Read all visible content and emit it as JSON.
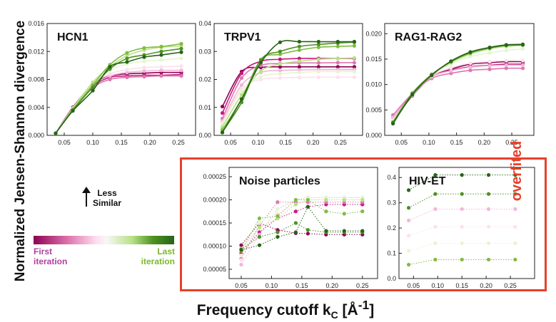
{
  "figure": {
    "ylabel": "Normalized Jensen-Shannon divergence",
    "xlabel_main": "Frequency cutoff k",
    "xlabel_sub": "C",
    "xlabel_unit": " [Å",
    "xlabel_sup": "-1",
    "xlabel_end": "]",
    "arrow_label_1": "Less",
    "arrow_label_2": "Similar",
    "legend_first_1": "First",
    "legend_first_2": "iteration",
    "legend_last_1": "Last",
    "legend_last_2": "iteration",
    "overfit_label": "overfited"
  },
  "palette": [
    "#8e0152",
    "#c51b7d",
    "#de77ae",
    "#f1b6da",
    "#fde0ef",
    "#e6f5d0",
    "#b8e186",
    "#7fbc41",
    "#4d9221",
    "#276419"
  ],
  "chart_data": [
    {
      "id": "hcn1",
      "type": "scatter",
      "title": "HCN1",
      "xlim": [
        0.02,
        0.28
      ],
      "ylim": [
        0,
        0.016
      ],
      "xticks": [
        "0.05",
        "0.10",
        "0.15",
        "0.20",
        "0.25"
      ],
      "yticks": [
        "0.000",
        "0.004",
        "0.008",
        "0.012",
        "0.016"
      ],
      "x": [
        0.035,
        0.065,
        0.1,
        0.13,
        0.16,
        0.19,
        0.22,
        0.255
      ],
      "series": [
        {
          "values": [
            0.0003,
            0.004,
            0.0073,
            0.0085,
            0.0088,
            0.0089,
            0.009,
            0.009
          ]
        },
        {
          "values": [
            0.0003,
            0.0038,
            0.007,
            0.0083,
            0.0085,
            0.0086,
            0.0086,
            0.0087
          ]
        },
        {
          "values": [
            0.0003,
            0.0036,
            0.0068,
            0.008,
            0.0083,
            0.0084,
            0.0085,
            0.0085
          ]
        },
        {
          "values": [
            0.0003,
            0.0037,
            0.0071,
            0.0085,
            0.009,
            0.0092,
            0.0093,
            0.0093
          ]
        },
        {
          "values": [
            0.0003,
            0.0038,
            0.0073,
            0.0088,
            0.0094,
            0.0097,
            0.0098,
            0.0099
          ]
        },
        {
          "values": [
            0.0003,
            0.0039,
            0.0075,
            0.0093,
            0.0102,
            0.0106,
            0.0108,
            0.011
          ]
        },
        {
          "values": [
            0.0003,
            0.0038,
            0.0076,
            0.0098,
            0.0114,
            0.0122,
            0.0126,
            0.0128
          ]
        },
        {
          "values": [
            0.0003,
            0.0037,
            0.0072,
            0.0101,
            0.0118,
            0.0125,
            0.0127,
            0.0131
          ]
        },
        {
          "values": [
            0.0003,
            0.0036,
            0.0069,
            0.0095,
            0.011,
            0.0115,
            0.012,
            0.0124
          ]
        },
        {
          "values": [
            0.0003,
            0.0035,
            0.0064,
            0.0098,
            0.0105,
            0.0112,
            0.0115,
            0.0119
          ]
        }
      ]
    },
    {
      "id": "trpv1",
      "type": "scatter",
      "title": "TRPV1",
      "xlim": [
        0.02,
        0.29
      ],
      "ylim": [
        0,
        0.04
      ],
      "xticks": [
        "0.05",
        "0.10",
        "0.15",
        "0.20",
        "0.25"
      ],
      "yticks": [
        "0.00",
        "0.01",
        "0.02",
        "0.03",
        "0.04"
      ],
      "x": [
        0.035,
        0.07,
        0.105,
        0.14,
        0.175,
        0.21,
        0.245,
        0.275
      ],
      "series": [
        {
          "values": [
            0.0103,
            0.0228,
            0.0243,
            0.0245,
            0.0245,
            0.0245,
            0.0245,
            0.0245
          ]
        },
        {
          "values": [
            0.008,
            0.0222,
            0.0265,
            0.0272,
            0.0275,
            0.0275,
            0.0275,
            0.0275
          ]
        },
        {
          "values": [
            0.006,
            0.0205,
            0.025,
            0.0257,
            0.0259,
            0.0259,
            0.026,
            0.026
          ]
        },
        {
          "values": [
            0.005,
            0.018,
            0.0225,
            0.0232,
            0.0234,
            0.0235,
            0.0235,
            0.0235
          ]
        },
        {
          "values": [
            0.0045,
            0.0165,
            0.02,
            0.0205,
            0.0207,
            0.0208,
            0.0208,
            0.0208
          ]
        },
        {
          "values": [
            0.004,
            0.016,
            0.021,
            0.022,
            0.0225,
            0.0228,
            0.0228,
            0.0228
          ]
        },
        {
          "values": [
            0.003,
            0.0145,
            0.023,
            0.0255,
            0.0265,
            0.0272,
            0.0275,
            0.0277
          ]
        },
        {
          "values": [
            0.002,
            0.013,
            0.027,
            0.029,
            0.0305,
            0.0315,
            0.0318,
            0.032
          ]
        },
        {
          "values": [
            0.0012,
            0.0118,
            0.027,
            0.03,
            0.0318,
            0.0325,
            0.033,
            0.0333
          ]
        },
        {
          "values": [
            0.001,
            0.013,
            0.026,
            0.0333,
            0.0335,
            0.0335,
            0.0335,
            0.0335
          ]
        }
      ]
    },
    {
      "id": "rag",
      "type": "scatter",
      "title": "RAG1-RAG2",
      "xlim": [
        0.02,
        0.29
      ],
      "ylim": [
        0,
        0.022
      ],
      "xticks": [
        "0.05",
        "0.10",
        "0.15",
        "0.20",
        "0.25"
      ],
      "yticks": [
        "0.000",
        "0.005",
        "0.010",
        "0.015",
        "0.020"
      ],
      "x": [
        0.035,
        0.07,
        0.105,
        0.14,
        0.175,
        0.21,
        0.24,
        0.27
      ],
      "series": [
        {
          "values": [
            0.0028,
            0.0078,
            0.0115,
            0.013,
            0.014,
            0.0143,
            0.0145,
            0.0145
          ]
        },
        {
          "values": [
            0.0035,
            0.008,
            0.0116,
            0.0128,
            0.0135,
            0.0138,
            0.014,
            0.014
          ]
        },
        {
          "values": [
            0.004,
            0.0082,
            0.0112,
            0.0122,
            0.0128,
            0.013,
            0.0132,
            0.0132
          ]
        },
        {
          "values": [
            0.0035,
            0.008,
            0.0115,
            0.0127,
            0.0134,
            0.0137,
            0.0138,
            0.0138
          ]
        },
        {
          "values": [
            0.003,
            0.0079,
            0.0117,
            0.0133,
            0.0142,
            0.0145,
            0.0147,
            0.0147
          ]
        },
        {
          "values": [
            0.0028,
            0.008,
            0.012,
            0.014,
            0.0155,
            0.0162,
            0.0167,
            0.017
          ]
        },
        {
          "values": [
            0.0027,
            0.0082,
            0.012,
            0.0143,
            0.016,
            0.017,
            0.0175,
            0.0177
          ]
        },
        {
          "values": [
            0.0026,
            0.0083,
            0.012,
            0.0145,
            0.0162,
            0.0172,
            0.0177,
            0.0178
          ]
        },
        {
          "values": [
            0.0025,
            0.0082,
            0.0119,
            0.0145,
            0.0163,
            0.0172,
            0.0177,
            0.0178
          ]
        },
        {
          "values": [
            0.0023,
            0.008,
            0.0118,
            0.0146,
            0.0164,
            0.0173,
            0.0178,
            0.0179
          ]
        }
      ]
    },
    {
      "id": "noise",
      "type": "line",
      "title": "Noise particles",
      "xlim": [
        0.03,
        0.275
      ],
      "ylim": [
        3e-05,
        0.00027
      ],
      "xticks": [
        "0.05",
        "0.10",
        "0.15",
        "0.20",
        "0.25"
      ],
      "yticks": [
        "0.00005",
        "0.00010",
        "0.00015",
        "0.00020",
        "0.00025"
      ],
      "x": [
        0.05,
        0.08,
        0.11,
        0.14,
        0.16,
        0.19,
        0.22,
        0.25
      ],
      "series": [
        {
          "values": [
            0.000102,
            0.00015,
            0.000135,
            0.000128,
            0.000127,
            0.000125,
            0.000125,
            0.000125
          ]
        },
        {
          "values": [
            8.5e-05,
            0.00013,
            0.00016,
            0.000175,
            0.000185,
            0.00019,
            0.00019,
            0.00019
          ]
        },
        {
          "values": [
            7.3e-05,
            0.000145,
            0.000195,
            0.000195,
            0.000195,
            0.000195,
            0.000195,
            0.000195
          ]
        },
        {
          "values": [
            6e-05,
            0.000125,
            0.00018,
            0.0002,
            0.000205,
            0.000205,
            0.000205,
            0.000205
          ]
        },
        {
          "values": [
            7e-05,
            0.00014,
            0.00017,
            0.00019,
            0.0002,
            0.0002,
            0.0002,
            0.0002
          ]
        },
        {
          "values": [
            8e-05,
            0.00015,
            0.00018,
            0.0002,
            0.000205,
            0.000205,
            0.000205,
            0.000205
          ]
        },
        {
          "values": [
            9.5e-05,
            0.00014,
            0.00016,
            0.00019,
            0.0002,
            0.0002,
            0.0002,
            0.0002
          ]
        },
        {
          "values": [
            9e-05,
            0.00016,
            0.000165,
            0.0002,
            0.0002,
            0.000175,
            0.00017,
            0.000175
          ]
        },
        {
          "values": [
            9.3e-05,
            0.00012,
            0.00013,
            0.00015,
            0.000135,
            0.00013,
            0.00013,
            0.00013
          ]
        },
        {
          "values": [
            9.2e-05,
            0.000102,
            0.00012,
            0.00013,
            0.000185,
            0.000133,
            0.000133,
            0.000133
          ]
        }
      ]
    },
    {
      "id": "hiv",
      "type": "line",
      "title": "HIV-ET",
      "xlim": [
        0.02,
        0.3
      ],
      "ylim": [
        0,
        0.44
      ],
      "xticks": [
        "0.05",
        "0.10",
        "0.15",
        "0.20",
        "0.25"
      ],
      "yticks": [
        "0.0",
        "0.1",
        "0.2",
        "0.3",
        "0.4"
      ],
      "x": [
        0.04,
        0.095,
        0.15,
        0.205,
        0.26
      ],
      "series": [
        {
          "values": [
            0.055,
            0.075,
            0.075,
            0.075,
            0.075
          ]
        },
        {
          "values": [
            0.11,
            0.14,
            0.14,
            0.14,
            0.14
          ]
        },
        {
          "values": [
            0.17,
            0.205,
            0.205,
            0.205,
            0.205
          ]
        },
        {
          "values": [
            0.23,
            0.275,
            0.275,
            0.275,
            0.275
          ]
        },
        {
          "values": [
            0.28,
            0.335,
            0.335,
            0.335,
            0.335
          ]
        },
        {
          "values": [
            0.35,
            0.41,
            0.41,
            0.41,
            0.41
          ]
        }
      ],
      "series_colors": [
        7,
        5,
        4,
        3,
        8,
        9
      ]
    }
  ]
}
